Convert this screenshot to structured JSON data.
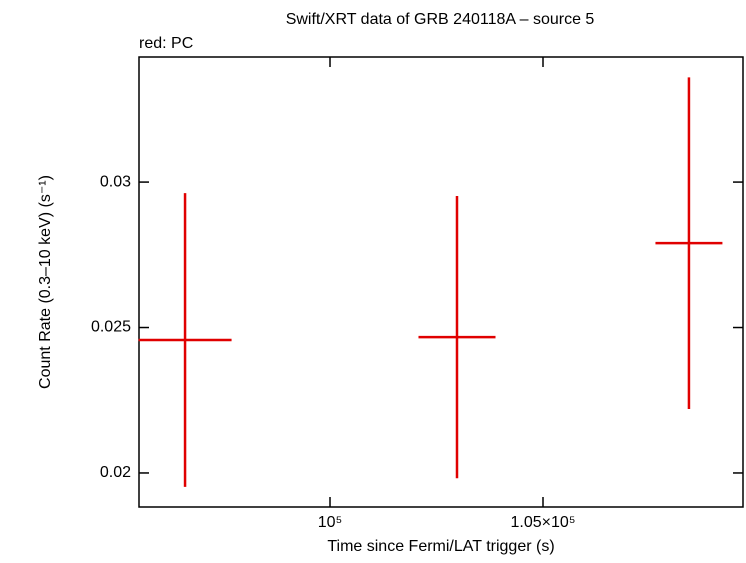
{
  "chart_data": {
    "type": "errorbar",
    "title": "Swift/XRT data of GRB 240118A – source 5",
    "subtitle": "red: PC",
    "x_label": "Time since Fermi/LAT trigger (s)",
    "y_label": "Count Rate (0.3–10 keV) (s⁻¹)",
    "series": [
      {
        "name": "PC",
        "color": "#e00000",
        "x": [
          96597,
          102981,
          108426
        ],
        "xerr": [
          1092,
          904,
          786
        ],
        "values": [
          0.02457,
          0.02467,
          0.0279
        ],
        "yerr": [
          0.00505,
          0.00485,
          0.0057
        ]
      }
    ],
    "xlim": [
      95516,
      109695
    ],
    "xticks": [
      {
        "value": 100000,
        "label": "10⁵"
      },
      {
        "value": 105000,
        "label": "1.05×10⁵"
      }
    ],
    "ylim": [
      0.01883,
      0.0343
    ],
    "yticks": [
      0.02,
      0.025,
      0.03
    ]
  }
}
